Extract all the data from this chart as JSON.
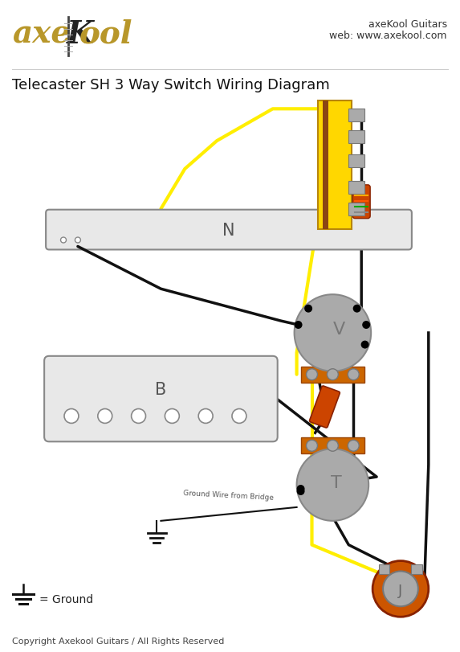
{
  "title": "Telecaster SH 3 Way Switch Wiring Diagram",
  "brand_right1": "axeKool Guitars",
  "brand_right2": "web: www.axekool.com",
  "copyright": "Copyright Axekool Guitars / All Rights Reserved",
  "ground_label": "= Ground",
  "bg_color": "#ffffff",
  "wire_yellow": "#FFEE00",
  "wire_black": "#111111",
  "pot_color": "#aaaaaa",
  "switch_yellow": "#FFD700",
  "resistor_color": "#cc4400",
  "jack_ring": "#cc5500",
  "jack_center": "#aaaaaa",
  "orange_bar": "#cc6600"
}
